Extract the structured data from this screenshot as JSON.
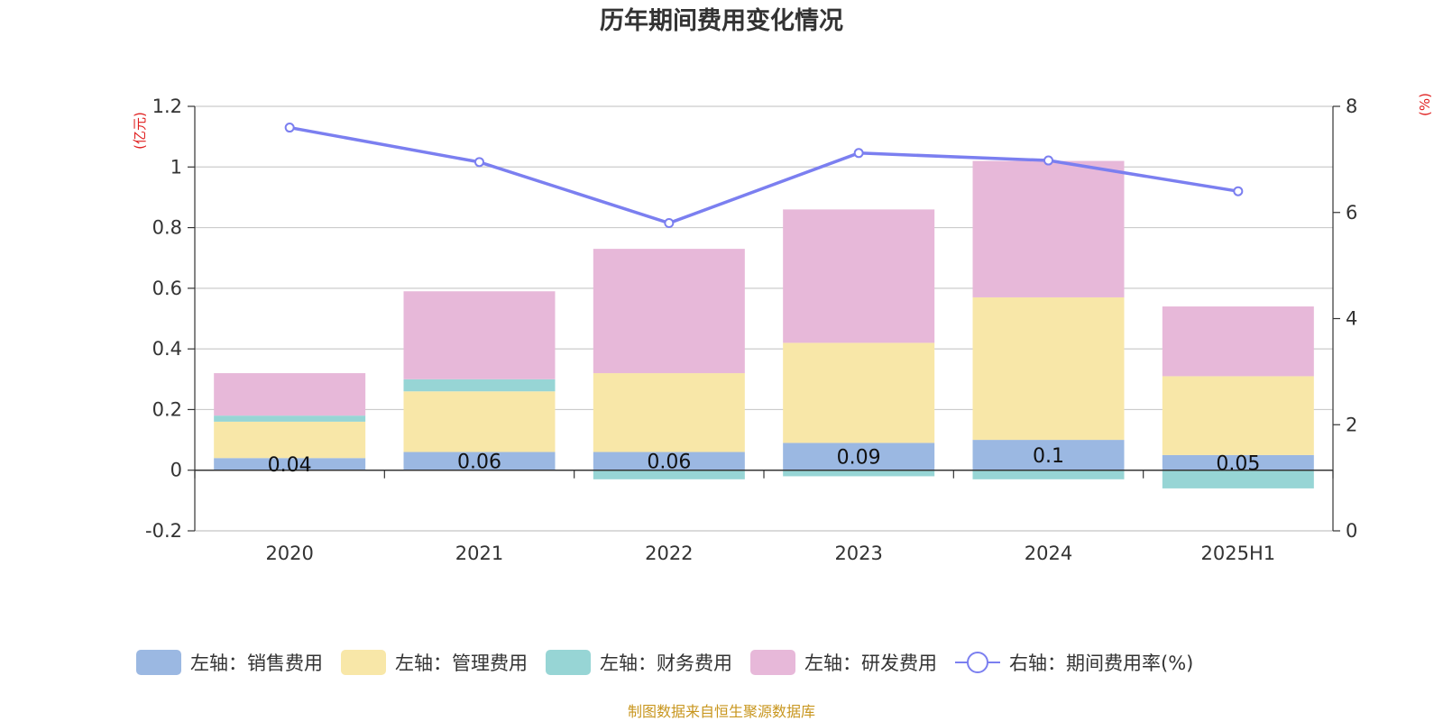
{
  "chart_data": {
    "type": "bar",
    "stacked": true,
    "title": "历年期间费用变化情况",
    "categories": [
      "2020",
      "2021",
      "2022",
      "2023",
      "2024",
      "2025H1"
    ],
    "y_left": {
      "unit_label": "(亿元)",
      "ylim": [
        -0.2,
        1.2
      ],
      "ticks": [
        -0.2,
        0,
        0.2,
        0.4,
        0.6,
        0.8,
        1,
        1.2
      ],
      "tick_labels": [
        "-0.2",
        "0",
        "0.2",
        "0.4",
        "0.6",
        "0.8",
        "1",
        "1.2"
      ]
    },
    "y_right": {
      "unit_label": "(%)",
      "ylim": [
        0,
        8
      ],
      "ticks": [
        0,
        2,
        4,
        6,
        8
      ],
      "tick_labels": [
        "0",
        "2",
        "4",
        "6",
        "8"
      ]
    },
    "series": [
      {
        "name": "左轴：销售费用",
        "axis": "left",
        "type": "bar",
        "color": "#9bb8e2",
        "values": [
          0.04,
          0.06,
          0.06,
          0.09,
          0.1,
          0.05
        ],
        "labels": [
          "0.04",
          "0.06",
          "0.06",
          "0.09",
          "0.1",
          "0.05"
        ]
      },
      {
        "name": "左轴：管理费用",
        "axis": "left",
        "type": "bar",
        "color": "#f8e7a8",
        "values": [
          0.12,
          0.2,
          0.26,
          0.33,
          0.47,
          0.26
        ]
      },
      {
        "name": "左轴：财务费用",
        "axis": "left",
        "type": "bar",
        "color": "#97d5d5",
        "values": [
          0.02,
          0.04,
          -0.03,
          -0.02,
          -0.03,
          -0.06
        ]
      },
      {
        "name": "左轴：研发费用",
        "axis": "left",
        "type": "bar",
        "color": "#e7b8d9",
        "values": [
          0.14,
          0.29,
          0.41,
          0.44,
          0.45,
          0.23
        ]
      },
      {
        "name": "右轴：期间费用率(%)",
        "axis": "right",
        "type": "line",
        "color": "#7b7ff0",
        "values": [
          7.6,
          6.95,
          5.8,
          7.12,
          6.98,
          6.4
        ]
      }
    ],
    "grid": true,
    "legend_position": "bottom"
  },
  "source": "制图数据来自恒生聚源数据库"
}
